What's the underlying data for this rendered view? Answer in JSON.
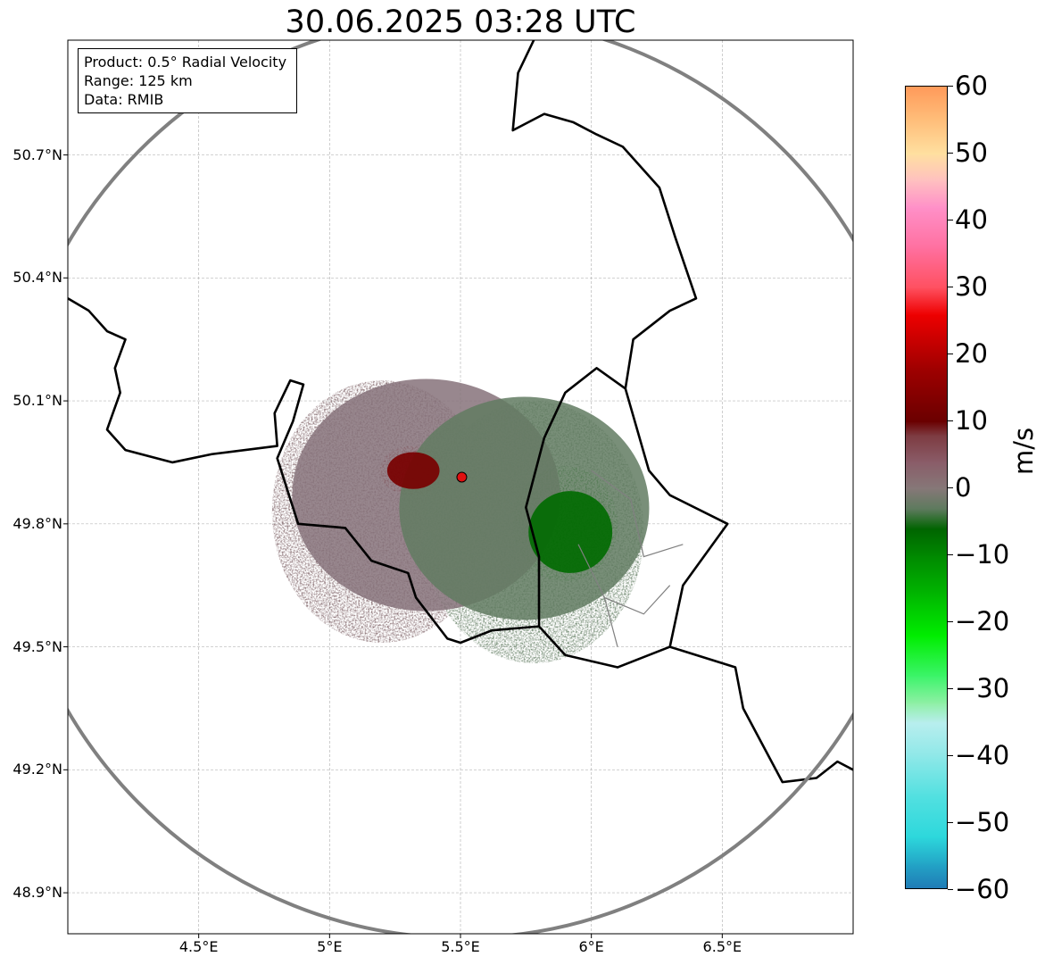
{
  "title": "30.06.2025 03:28 UTC",
  "info_box": {
    "lines": [
      "Product: 0.5° Radial Velocity",
      "Range: 125 km",
      "Data: RMIB"
    ]
  },
  "chart_data": {
    "type": "map",
    "title": "30.06.2025 03:28 UTC",
    "lon_range": [
      4.0,
      7.0
    ],
    "lat_range": [
      48.8,
      50.98
    ],
    "lon_ticks": [
      4.5,
      5.0,
      5.5,
      6.0,
      6.5
    ],
    "lon_tick_labels": [
      "4.5°E",
      "5°E",
      "5.5°E",
      "6°E",
      "6.5°E"
    ],
    "lat_ticks": [
      48.9,
      49.2,
      49.5,
      49.8,
      50.1,
      50.4,
      50.7
    ],
    "lat_tick_labels": [
      "48.9°N",
      "49.2°N",
      "49.5°N",
      "49.8°N",
      "50.1°N",
      "50.4°N",
      "50.7°N"
    ],
    "grid": true,
    "radar_site": {
      "lon": 5.505,
      "lat": 49.914
    },
    "range_km": 125,
    "colorbar": {
      "label": "m/s",
      "min": -60,
      "max": 60,
      "ticks": [
        60,
        50,
        40,
        30,
        20,
        10,
        0,
        -10,
        -20,
        -30,
        -40,
        -50,
        -60
      ],
      "tick_labels": [
        "60",
        "50",
        "40",
        "30",
        "20",
        "10",
        "0",
        "−10",
        "−20",
        "−30",
        "−40",
        "−50",
        "−60"
      ],
      "stops": [
        {
          "v": -60,
          "color": "#1f77b4"
        },
        {
          "v": -56,
          "color": "#23a6c7"
        },
        {
          "v": -52,
          "color": "#2dd8dc"
        },
        {
          "v": -46,
          "color": "#52e0e0"
        },
        {
          "v": -40,
          "color": "#8ee8e8"
        },
        {
          "v": -35,
          "color": "#b8eeee"
        },
        {
          "v": -32,
          "color": "#8ef0a4"
        },
        {
          "v": -28,
          "color": "#3cf46a"
        },
        {
          "v": -22,
          "color": "#00ee00"
        },
        {
          "v": -16,
          "color": "#00b800"
        },
        {
          "v": -10,
          "color": "#008800"
        },
        {
          "v": -6,
          "color": "#006400"
        },
        {
          "v": -3,
          "color": "#5e7a5e"
        },
        {
          "v": 0,
          "color": "#867878"
        },
        {
          "v": 4,
          "color": "#8a5c68"
        },
        {
          "v": 8,
          "color": "#7d3a40"
        },
        {
          "v": 10,
          "color": "#6a0000"
        },
        {
          "v": 18,
          "color": "#a00000"
        },
        {
          "v": 26,
          "color": "#ee0000"
        },
        {
          "v": 30,
          "color": "#ff5060"
        },
        {
          "v": 36,
          "color": "#ff70a0"
        },
        {
          "v": 42,
          "color": "#ff90c8"
        },
        {
          "v": 46,
          "color": "#ffc0c0"
        },
        {
          "v": 50,
          "color": "#ffe0a0"
        },
        {
          "v": 55,
          "color": "#ffbe7a"
        },
        {
          "v": 60,
          "color": "#ff9a5a"
        }
      ]
    },
    "velocity_regions": [
      {
        "name": "outbound-pink",
        "value": 3,
        "color": "#806468",
        "lon": 5.2,
        "lat": 49.83,
        "rlon": 0.42,
        "rlat": 0.32
      },
      {
        "name": "outbound-core",
        "value": 12,
        "color": "#7a0000",
        "lon": 5.32,
        "lat": 49.93,
        "rlon": 0.13,
        "rlat": 0.06
      },
      {
        "name": "inbound-gray-green",
        "value": -3,
        "color": "#5f7a5f",
        "lon": 5.78,
        "lat": 49.78,
        "rlon": 0.42,
        "rlat": 0.32
      },
      {
        "name": "inbound-green",
        "value": -9,
        "color": "#007000",
        "lon": 5.9,
        "lat": 49.8,
        "rlon": 0.2,
        "rlat": 0.14
      }
    ],
    "borders": [
      {
        "name": "belgium-france-west",
        "points": [
          [
            4.0,
            50.35
          ],
          [
            4.08,
            50.32
          ],
          [
            4.15,
            50.27
          ],
          [
            4.22,
            50.25
          ],
          [
            4.18,
            50.18
          ],
          [
            4.2,
            50.12
          ],
          [
            4.15,
            50.03
          ],
          [
            4.22,
            49.98
          ],
          [
            4.4,
            49.95
          ],
          [
            4.55,
            49.97
          ],
          [
            4.8,
            49.99
          ],
          [
            4.79,
            50.07
          ],
          [
            4.85,
            50.15
          ],
          [
            4.9,
            50.14
          ],
          [
            4.86,
            50.05
          ],
          [
            4.8,
            49.96
          ],
          [
            4.88,
            49.8
          ],
          [
            5.06,
            49.79
          ],
          [
            5.16,
            49.71
          ],
          [
            5.3,
            49.68
          ],
          [
            5.33,
            49.62
          ],
          [
            5.45,
            49.52
          ],
          [
            5.5,
            49.51
          ],
          [
            5.62,
            49.54
          ],
          [
            5.8,
            49.55
          ]
        ]
      },
      {
        "name": "luxembourg-outline",
        "points": [
          [
            5.8,
            49.55
          ],
          [
            5.9,
            49.48
          ],
          [
            6.1,
            49.45
          ],
          [
            6.3,
            49.5
          ],
          [
            6.35,
            49.65
          ],
          [
            6.52,
            49.8
          ],
          [
            6.3,
            49.87
          ],
          [
            6.22,
            49.93
          ],
          [
            6.13,
            50.13
          ],
          [
            6.02,
            50.18
          ],
          [
            5.9,
            50.12
          ],
          [
            5.82,
            50.01
          ],
          [
            5.75,
            49.84
          ],
          [
            5.8,
            49.72
          ],
          [
            5.8,
            49.55
          ]
        ]
      },
      {
        "name": "germany-belgium-east",
        "points": [
          [
            6.13,
            50.13
          ],
          [
            6.16,
            50.25
          ],
          [
            6.3,
            50.32
          ],
          [
            6.4,
            50.35
          ],
          [
            6.32,
            50.5
          ],
          [
            6.26,
            50.62
          ],
          [
            6.12,
            50.72
          ],
          [
            6.02,
            50.75
          ],
          [
            5.93,
            50.78
          ],
          [
            5.82,
            50.8
          ],
          [
            5.7,
            50.76
          ],
          [
            5.72,
            50.9
          ],
          [
            5.78,
            50.98
          ]
        ]
      },
      {
        "name": "germany-france-east",
        "points": [
          [
            6.3,
            49.5
          ],
          [
            6.55,
            49.45
          ],
          [
            6.58,
            49.35
          ],
          [
            6.73,
            49.17
          ],
          [
            6.86,
            49.18
          ],
          [
            6.94,
            49.22
          ],
          [
            7.0,
            49.2
          ]
        ]
      }
    ],
    "minor_borders": [
      {
        "name": "lux-canton-a",
        "points": [
          [
            6.0,
            49.93
          ],
          [
            6.15,
            49.86
          ],
          [
            6.2,
            49.72
          ],
          [
            6.35,
            49.75
          ]
        ]
      },
      {
        "name": "lux-canton-b",
        "points": [
          [
            5.95,
            49.75
          ],
          [
            6.05,
            49.62
          ],
          [
            6.2,
            49.58
          ],
          [
            6.3,
            49.65
          ]
        ]
      },
      {
        "name": "lux-canton-c",
        "points": [
          [
            6.05,
            49.62
          ],
          [
            6.1,
            49.5
          ]
        ]
      }
    ]
  }
}
